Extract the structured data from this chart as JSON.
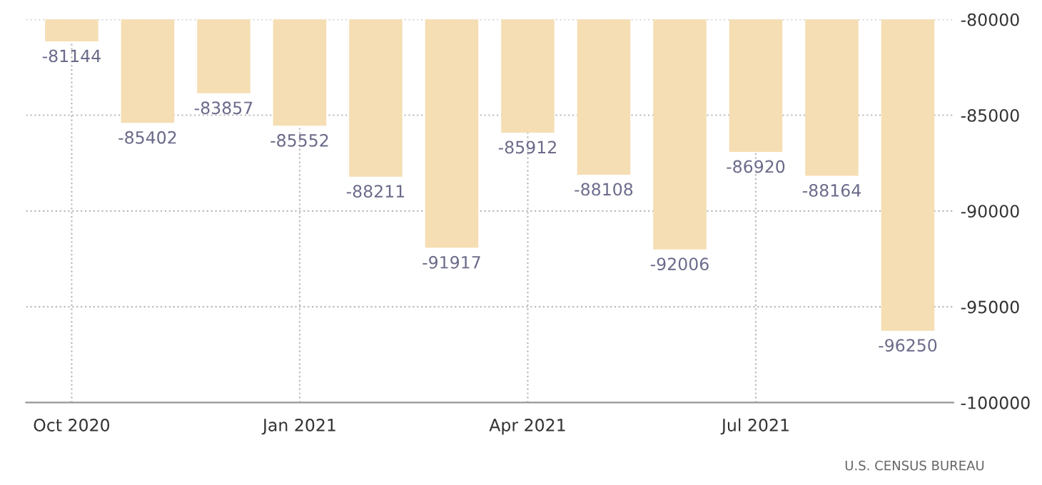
{
  "chart_data": {
    "type": "bar",
    "categories": [
      "Oct 2020",
      null,
      null,
      "Jan 2021",
      null,
      null,
      "Apr 2021",
      null,
      null,
      "Jul 2021",
      null,
      null
    ],
    "values": [
      -81144,
      -85402,
      -83857,
      -85552,
      -88211,
      -91917,
      -85912,
      -88108,
      -92006,
      -86920,
      -88164,
      -96250
    ],
    "color": "#f5deb3",
    "data_labels": true,
    "ylim": [
      -100000,
      -80000
    ],
    "yticks": [
      -100000,
      -95000,
      -90000,
      -85000,
      -80000
    ],
    "grid": true,
    "annotations": [
      "U.S. CENSUS BUREAU"
    ]
  }
}
